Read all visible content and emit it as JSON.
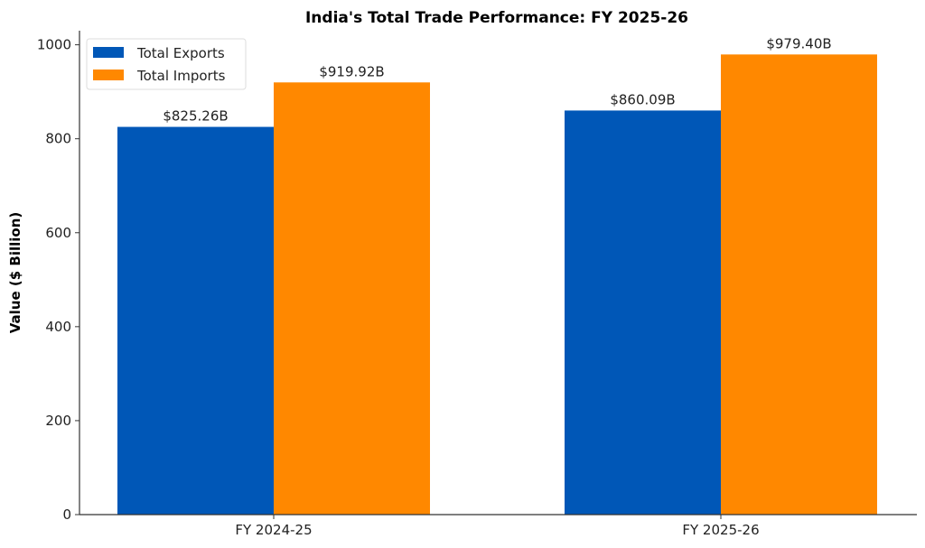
{
  "chart_data": {
    "type": "bar",
    "title": "India's Total Trade Performance: FY 2025-26",
    "xlabel": "",
    "ylabel": "Value ($ Billion)",
    "categories": [
      "FY 2024-25",
      "FY 2025-26"
    ],
    "series": [
      {
        "name": "Total Exports",
        "color": "#0057b7",
        "values": [
          825.26,
          860.09
        ],
        "labels": [
          "$825.26B",
          "$860.09B"
        ]
      },
      {
        "name": "Total Imports",
        "color": "#ff8800",
        "values": [
          919.92,
          979.4
        ],
        "labels": [
          "$919.92B",
          "$979.40B"
        ]
      }
    ],
    "ylim": [
      0,
      1030
    ],
    "yticks": [
      0,
      200,
      400,
      600,
      800,
      1000
    ],
    "grid": false,
    "legend": "top-left"
  }
}
